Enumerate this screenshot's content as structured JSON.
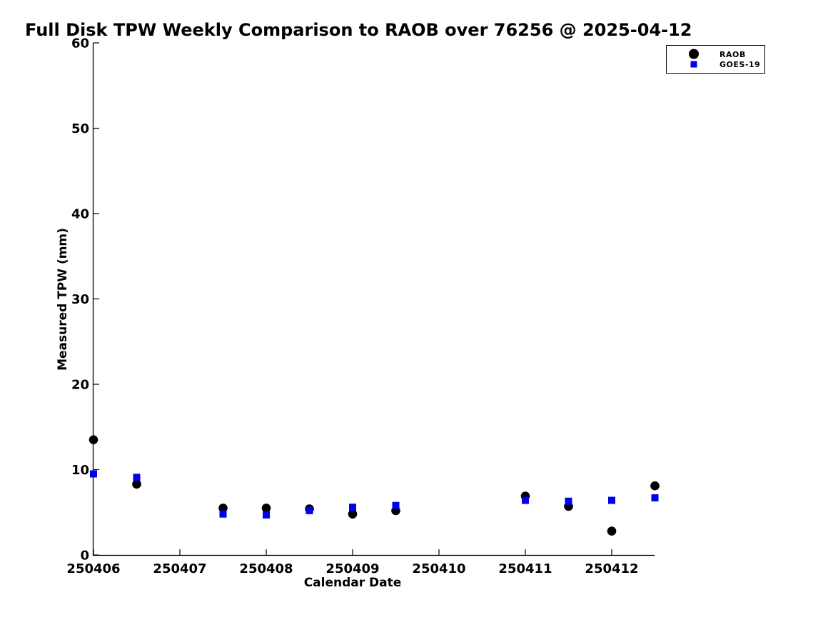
{
  "window": {
    "background": "#ffffff"
  },
  "chart_data": {
    "type": "scatter",
    "title": "Full Disk TPW Weekly Comparison to RAOB over 76256 @ 2025-04-12",
    "xlabel": "Calendar Date",
    "ylabel": "Measured TPW (mm)",
    "xlim": [
      250406,
      250412.5
    ],
    "ylim": [
      0,
      60
    ],
    "x_ticks": [
      "250406",
      "250407",
      "250408",
      "250409",
      "250410",
      "250411",
      "250412"
    ],
    "y_ticks": [
      "0",
      "10",
      "20",
      "30",
      "40",
      "50",
      "60"
    ],
    "grid": false,
    "legend_position": "top-right",
    "axis_color": "#000000",
    "series": [
      {
        "name": "RAOB",
        "marker": "circle",
        "color": "#000000",
        "x": [
          250406.0,
          250406.5,
          250407.5,
          250408.0,
          250408.5,
          250409.0,
          250409.5,
          250411.0,
          250411.5,
          250412.0,
          250412.5
        ],
        "y": [
          13.5,
          8.3,
          5.5,
          5.5,
          5.4,
          4.8,
          5.2,
          6.9,
          5.7,
          2.8,
          8.1
        ]
      },
      {
        "name": "GOES-19",
        "marker": "square",
        "color": "#0000ee",
        "x": [
          250406.0,
          250406.5,
          250407.5,
          250408.0,
          250408.5,
          250409.0,
          250409.5,
          250411.0,
          250411.5,
          250412.0,
          250412.5
        ],
        "y": [
          9.5,
          9.1,
          4.8,
          4.7,
          5.2,
          5.6,
          5.8,
          6.4,
          6.3,
          6.4,
          6.7
        ]
      }
    ]
  }
}
